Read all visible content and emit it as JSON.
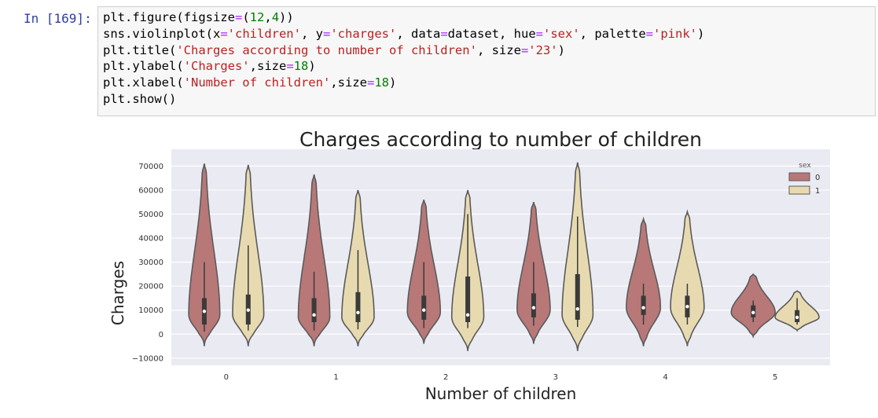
{
  "cell": {
    "prompt": "In [169]:",
    "code_lines": [
      [
        [
          "t",
          "plt.figure(figsize"
        ],
        [
          "o",
          "="
        ],
        [
          "t",
          "("
        ],
        [
          "n",
          "12"
        ],
        [
          "t",
          ","
        ],
        [
          "n",
          "4"
        ],
        [
          "t",
          "))"
        ]
      ],
      [
        [
          "t",
          "sns.violinplot(x"
        ],
        [
          "o",
          "="
        ],
        [
          "s",
          "'children'"
        ],
        [
          "t",
          ", y"
        ],
        [
          "o",
          "="
        ],
        [
          "s",
          "'charges'"
        ],
        [
          "t",
          ", data"
        ],
        [
          "o",
          "="
        ],
        [
          "t",
          "dataset, hue"
        ],
        [
          "o",
          "="
        ],
        [
          "s",
          "'sex'"
        ],
        [
          "t",
          ", palette"
        ],
        [
          "o",
          "="
        ],
        [
          "s",
          "'pink'"
        ],
        [
          "t",
          ")"
        ]
      ],
      [
        [
          "t",
          "plt.title("
        ],
        [
          "s",
          "'Charges according to number of children'"
        ],
        [
          "t",
          ", size"
        ],
        [
          "o",
          "="
        ],
        [
          "s",
          "'23'"
        ],
        [
          "t",
          ")"
        ]
      ],
      [
        [
          "t",
          "plt.ylabel("
        ],
        [
          "s",
          "'Charges'"
        ],
        [
          "t",
          ",size"
        ],
        [
          "o",
          "="
        ],
        [
          "n",
          "18"
        ],
        [
          "t",
          ")"
        ]
      ],
      [
        [
          "t",
          "plt.xlabel("
        ],
        [
          "s",
          "'Number of children'"
        ],
        [
          "t",
          ",size"
        ],
        [
          "o",
          "="
        ],
        [
          "n",
          "18"
        ],
        [
          "t",
          ")"
        ]
      ],
      [
        [
          "t",
          "plt.show()"
        ]
      ]
    ]
  },
  "chart_data": {
    "type": "violin",
    "title": "Charges according to number of children",
    "xlabel": "Number of children",
    "ylabel": "Charges",
    "categories": [
      "0",
      "1",
      "2",
      "3",
      "4",
      "5"
    ],
    "ylim": [
      -13000,
      77000
    ],
    "yticks": [
      -10000,
      0,
      10000,
      20000,
      30000,
      40000,
      50000,
      60000,
      70000
    ],
    "ytick_labels": [
      "−10000",
      "0",
      "10000",
      "20000",
      "30000",
      "40000",
      "50000",
      "60000",
      "70000"
    ],
    "grid": true,
    "legend": {
      "title": "sex",
      "placement": "top-right",
      "entries": [
        "0",
        "1"
      ]
    },
    "colors": {
      "0": "#b87878",
      "1": "#e8dab0",
      "background": "#eaeaf2",
      "outline": "#5a5a5a"
    },
    "series": [
      {
        "name": "0",
        "violins": [
          {
            "category": "0",
            "min": -5000,
            "max": 71000,
            "q1": 4000,
            "median": 9500,
            "q3": 15000,
            "whisker_low": 1000,
            "whisker_high": 30000,
            "mode": 8000
          },
          {
            "category": "1",
            "min": -5000,
            "max": 66500,
            "q1": 5000,
            "median": 8000,
            "q3": 15000,
            "whisker_low": 1500,
            "whisker_high": 26000,
            "mode": 7000
          },
          {
            "category": "2",
            "min": -4000,
            "max": 56000,
            "q1": 6000,
            "median": 10000,
            "q3": 16000,
            "whisker_low": 2500,
            "whisker_high": 30000,
            "mode": 9000
          },
          {
            "category": "3",
            "min": -4000,
            "max": 55000,
            "q1": 7000,
            "median": 11000,
            "q3": 17000,
            "whisker_low": 3500,
            "whisker_high": 30000,
            "mode": 10000
          },
          {
            "category": "4",
            "min": -5000,
            "max": 48000,
            "q1": 8000,
            "median": 11000,
            "q3": 16000,
            "whisker_low": 4000,
            "whisker_high": 21000,
            "mode": 11000
          },
          {
            "category": "5",
            "min": -1000,
            "max": 25000,
            "q1": 7000,
            "median": 9000,
            "q3": 12000,
            "whisker_low": 5000,
            "whisker_high": 14000,
            "mode": 9000
          }
        ]
      },
      {
        "name": "1",
        "violins": [
          {
            "category": "0",
            "min": -5000,
            "max": 70500,
            "q1": 4000,
            "median": 10000,
            "q3": 16500,
            "whisker_low": 1500,
            "whisker_high": 37000,
            "mode": 8000
          },
          {
            "category": "1",
            "min": -5000,
            "max": 60000,
            "q1": 5000,
            "median": 9000,
            "q3": 17500,
            "whisker_low": 2000,
            "whisker_high": 35000,
            "mode": 7000
          },
          {
            "category": "2",
            "min": -7000,
            "max": 60000,
            "q1": 5000,
            "median": 8000,
            "q3": 24000,
            "whisker_low": 2500,
            "whisker_high": 50000,
            "mode": 7000
          },
          {
            "category": "3",
            "min": -7000,
            "max": 71500,
            "q1": 6000,
            "median": 10500,
            "q3": 25000,
            "whisker_low": 3000,
            "whisker_high": 49000,
            "mode": 8000
          },
          {
            "category": "4",
            "min": -5000,
            "max": 51000,
            "q1": 7000,
            "median": 11500,
            "q3": 16000,
            "whisker_low": 4000,
            "whisker_high": 21000,
            "mode": 11000
          },
          {
            "category": "5",
            "min": 1500,
            "max": 18000,
            "q1": 5000,
            "median": 7000,
            "q3": 10000,
            "whisker_low": 4000,
            "whisker_high": 15000,
            "mode": 7000
          }
        ]
      }
    ]
  }
}
